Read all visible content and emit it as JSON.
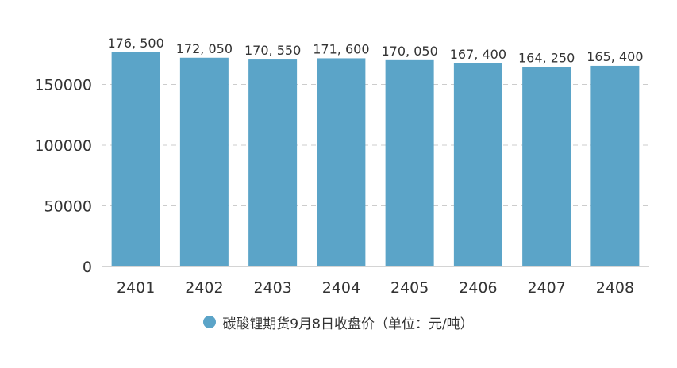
{
  "chart_data": {
    "type": "bar",
    "categories": [
      "2401",
      "2402",
      "2403",
      "2404",
      "2405",
      "2406",
      "2407",
      "2408"
    ],
    "series": [
      {
        "name": "碳酸锂期货9月8日收盘价（单位：元/吨）",
        "values": [
          176500,
          172050,
          170550,
          171600,
          170050,
          167400,
          164250,
          165400
        ],
        "data_labels": [
          "176, 500",
          "172, 050",
          "170, 550",
          "171, 600",
          "170, 050",
          "167, 400",
          "164, 250",
          "165, 400"
        ]
      }
    ],
    "y_ticks": [
      "0",
      "50000",
      "100000",
      "150000"
    ],
    "ylim": [
      0,
      200000
    ],
    "grid": true,
    "legend_position": "bottom"
  },
  "colors": {
    "bar": "#5ba4c8",
    "axis_line": "#aaaaaa",
    "grid_line": "#cccccc",
    "tick_text": "#333333",
    "label_text": "#333333"
  }
}
